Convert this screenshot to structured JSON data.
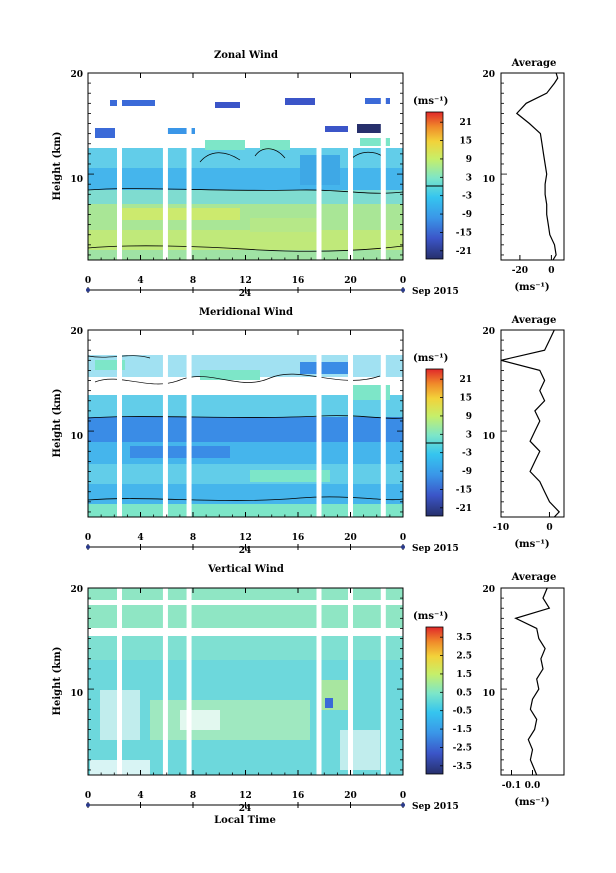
{
  "xlabel": "Local Time",
  "date_label": "Sep 2015",
  "day_label": "24",
  "chart_data": [
    {
      "type": "heatmap",
      "title": "Zonal Wind",
      "ylabel": "Height (km)",
      "unit": "(ms⁻¹)",
      "x_ticks": [
        "0",
        "4",
        "8",
        "12",
        "16",
        "20",
        "0"
      ],
      "xlim": [
        0,
        24
      ],
      "y_ticks": [
        "10",
        "20"
      ],
      "ylim": [
        1.5,
        20
      ],
      "colorbar_ticks": [
        "21",
        "15",
        "9",
        "3",
        "-3",
        "-9",
        "-15",
        "-21"
      ],
      "colorbar_range": [
        -24,
        24
      ],
      "contour_levels": [
        0
      ],
      "gap_hours": [
        2.4,
        5.9,
        7.7,
        17.6,
        20.0,
        22.5
      ],
      "average": {
        "title": "Average",
        "xlabel": "(ms⁻¹)",
        "x_ticks": [
          "-20",
          "0"
        ],
        "xlim": [
          -32,
          8
        ],
        "heights": [
          1.5,
          2,
          3,
          4,
          5,
          6,
          7,
          8,
          9,
          10,
          11,
          12,
          13,
          14,
          15,
          16,
          17,
          18,
          19,
          19.5,
          20
        ],
        "values": [
          1,
          3,
          2,
          -1,
          -2,
          -3,
          -3,
          -4,
          -4,
          -3,
          -4,
          -5,
          -6,
          -7,
          -14,
          -22,
          -16,
          -3,
          2,
          4,
          3
        ]
      }
    },
    {
      "type": "heatmap",
      "title": "Meridional Wind",
      "ylabel": "Height (km)",
      "unit": "(ms⁻¹)",
      "x_ticks": [
        "0",
        "4",
        "8",
        "12",
        "16",
        "20",
        "0"
      ],
      "xlim": [
        0,
        24
      ],
      "y_ticks": [
        "10",
        "20"
      ],
      "ylim": [
        1.5,
        20
      ],
      "colorbar_ticks": [
        "21",
        "15",
        "9",
        "3",
        "-3",
        "-9",
        "-15",
        "-21"
      ],
      "colorbar_range": [
        -24,
        24
      ],
      "contour_levels": [
        0
      ],
      "gap_hours": [
        2.4,
        5.9,
        7.7,
        17.6,
        20.0,
        22.5
      ],
      "average": {
        "title": "Average",
        "xlabel": "(ms⁻¹)",
        "x_ticks": [
          "-10",
          "0"
        ],
        "xlim": [
          -10,
          3
        ],
        "heights": [
          1.5,
          2,
          3,
          4,
          5,
          6,
          7,
          8,
          9,
          10,
          11,
          12,
          13,
          14,
          15,
          16,
          17,
          18,
          19,
          20
        ],
        "values": [
          1,
          2,
          0,
          -1,
          -2,
          -4,
          -3,
          -2,
          -4,
          -3,
          -2,
          -3,
          -1,
          -2,
          -1,
          -2,
          -10,
          -1,
          0,
          1
        ]
      }
    },
    {
      "type": "heatmap",
      "title": "Vertical Wind",
      "ylabel": "Height (km)",
      "unit": "(ms⁻¹)",
      "x_ticks": [
        "0",
        "4",
        "8",
        "12",
        "16",
        "20",
        "0"
      ],
      "xlim": [
        0,
        24
      ],
      "y_ticks": [
        "10",
        "20"
      ],
      "ylim": [
        1.5,
        20
      ],
      "colorbar_ticks": [
        "3.5",
        "2.5",
        "1.5",
        "0.5",
        "-0.5",
        "-1.5",
        "-2.5",
        "-3.5"
      ],
      "colorbar_range": [
        -4,
        4
      ],
      "contour_levels": [],
      "gap_hours": [
        2.4,
        5.9,
        7.7,
        17.6,
        20.0,
        22.5
      ],
      "average": {
        "title": "Average",
        "xlabel": "(ms⁻¹)",
        "x_ticks": [
          "-0.1",
          "0.0"
        ],
        "xlim": [
          -0.15,
          0.15
        ],
        "heights": [
          1.5,
          2,
          3,
          4,
          5,
          6,
          7,
          8,
          9,
          10,
          11,
          12,
          13,
          14,
          15,
          16,
          17,
          18,
          19,
          20
        ],
        "values": [
          0.02,
          0.01,
          -0.01,
          0.0,
          -0.02,
          0.01,
          0.02,
          -0.01,
          0.0,
          0.03,
          0.02,
          0.05,
          0.04,
          0.06,
          0.03,
          0.02,
          -0.08,
          0.08,
          0.05,
          0.07
        ]
      }
    }
  ]
}
